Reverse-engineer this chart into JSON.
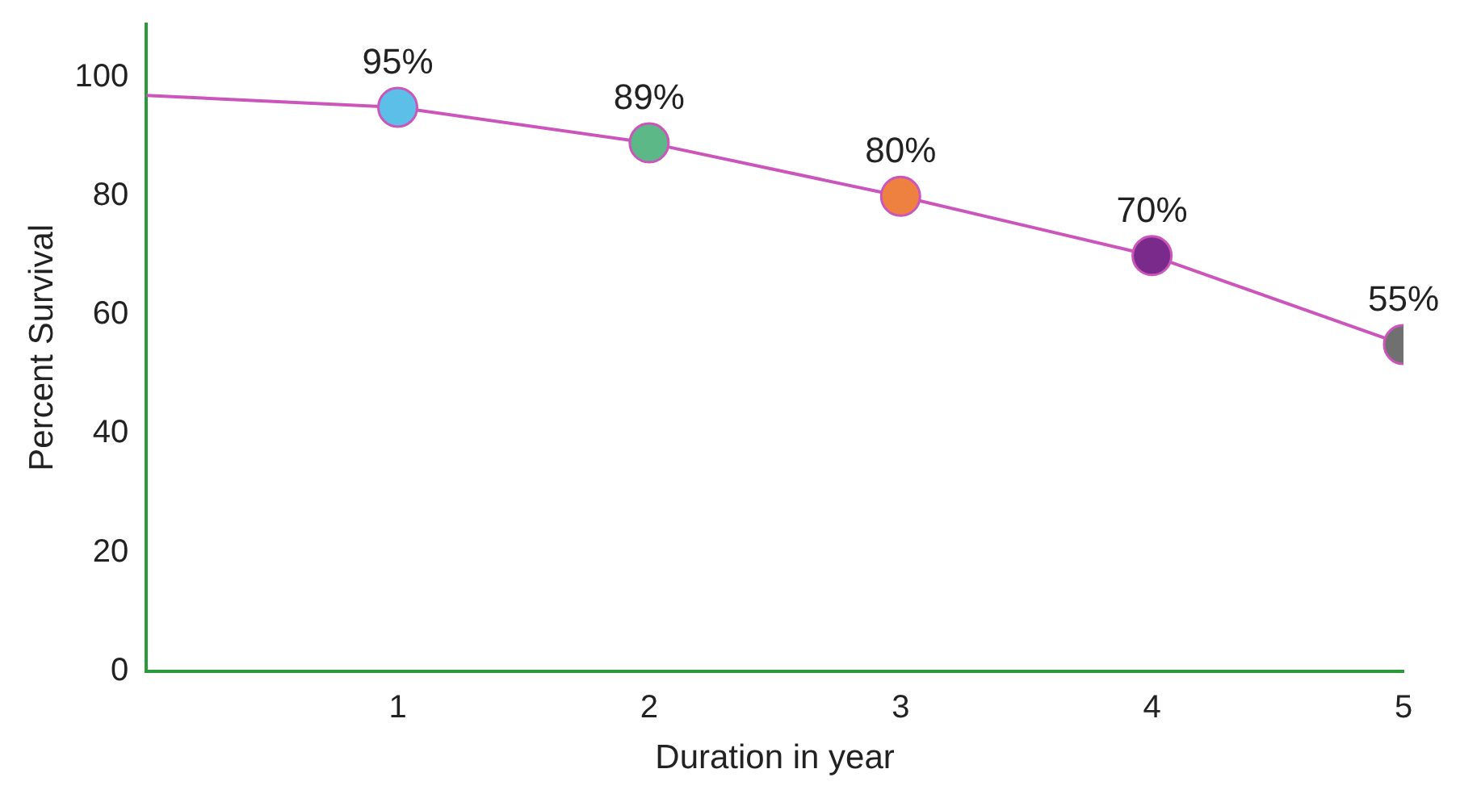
{
  "chart_data": {
    "type": "line",
    "xlabel": "Duration in year",
    "ylabel": "Percent Survival",
    "x": [
      0,
      1,
      2,
      3,
      4,
      5
    ],
    "series": [
      {
        "color": "#cc55bb",
        "colors": [
          null,
          "#5bbfe8",
          "#5cb887",
          "#ee8040",
          "#7a2a8a",
          "#707070"
        ],
        "values": [
          97,
          95,
          89,
          80,
          70,
          55
        ],
        "value_labels": [
          null,
          "95%",
          "89%",
          "80%",
          "70%",
          "55%"
        ]
      }
    ],
    "xlim": [
      0,
      5
    ],
    "xticks": [
      1,
      2,
      3,
      4,
      5
    ],
    "ylim": [
      0,
      109
    ],
    "yticks": [
      0,
      20,
      40,
      60,
      80,
      100
    ],
    "grid": false,
    "legend": false,
    "marker": "circle",
    "line_style": "solid"
  }
}
